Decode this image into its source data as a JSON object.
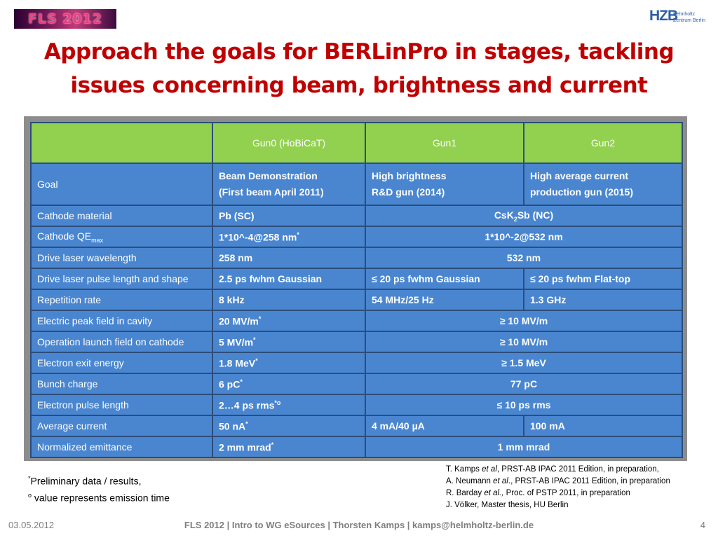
{
  "header": {
    "logo_left_text": "FLS 2012",
    "logo_right_text": "HZB",
    "logo_right_sub1": "Helmholtz",
    "logo_right_sub2": "Zentrum Berlin"
  },
  "title_line1": "Approach the goals for BERLinPro in stages, tackling",
  "title_line2": "issues concerning beam, brightness and current",
  "table": {
    "columns": [
      "",
      "Gun0 (HoBiCaT)",
      "Gun1",
      "Gun2"
    ],
    "goal": {
      "label": "Goal",
      "gun0_line1": "Beam Demonstration",
      "gun0_line2": "(First beam April 2011)",
      "gun1_line1": "High brightness",
      "gun1_line2": "R&D gun (2014)",
      "gun2_line1": "High average current",
      "gun2_line2": "production gun (2015)"
    },
    "cathode_material": {
      "label": "Cathode material",
      "gun0": "Pb (SC)",
      "gun12_pre": "CsK",
      "gun12_sub": "2",
      "gun12_post": "Sb (NC)"
    },
    "cathode_qe": {
      "label_main": "Cathode QE",
      "label_sub": "max",
      "gun0": "1*10^-4@258 nm",
      "gun0_sup": "*",
      "gun12": "1*10^-2@532 nm"
    },
    "rows": [
      {
        "label": "Drive laser wavelength",
        "gun0": "258 nm",
        "gun12": "532 nm"
      },
      {
        "label": "Drive laser pulse length and shape",
        "gun0": "2.5 ps fwhm Gaussian",
        "gun1": "≤ 20 ps fwhm Gaussian",
        "gun2": " ≤ 20 ps fwhm Flat-top"
      },
      {
        "label": "Repetition rate",
        "gun0": "8 kHz",
        "gun1": "54 MHz/25 Hz",
        "gun2": "1.3 GHz"
      },
      {
        "label": "Electric peak field in cavity",
        "gun0": "20 MV/m",
        "gun0_sup": "*",
        "gun12": "≥ 10 MV/m"
      },
      {
        "label": "Operation launch field on cathode",
        "gun0": "5 MV/m",
        "gun0_sup": "*",
        "gun12": "≥ 10 MV/m"
      },
      {
        "label": "Electron exit energy",
        "gun0": "1.8 MeV",
        "gun0_sup": "*",
        "gun12": "≥ 1.5 MeV"
      },
      {
        "label": "Bunch charge",
        "gun0": "6 pC",
        "gun0_sup": "*",
        "gun12": "77 pC"
      },
      {
        "label": "Electron pulse length",
        "gun0": "2…4 ps rms",
        "gun0_sup": "*o",
        "gun12": "≤ 10 ps rms"
      },
      {
        "label": "Average current",
        "gun0": "50 nA",
        "gun0_sup": "*",
        "gun1": "4 mA/40 µA",
        "gun2": "100 mA"
      },
      {
        "label": "Normalized emittance",
        "gun0": "2 mm  mrad",
        "gun0_sup": "*",
        "gun12": "1 mm mrad"
      }
    ]
  },
  "notes_left": {
    "line1_sup": "*",
    "line1": "Preliminary data / results,",
    "line2_sup": "o",
    "line2": " value represents emission time"
  },
  "notes_right": {
    "r1_pre": "T. Kamps ",
    "r1_em": "et al",
    "r1_post": ", PRST-AB IPAC 2011 Edition, in preparation,",
    "r2_pre": "A. Neumann ",
    "r2_em": "et al",
    "r2_post": "., PRST-AB IPAC 2011 Edition, in preparation",
    "r3_pre": "R. Barday ",
    "r3_em": "et al.,",
    "r3_post": " Proc. of PSTP 2011, in preparation",
    "r4": "J. Völker, Master thesis, HU Berlin"
  },
  "footer": {
    "date": "03.05.2012",
    "center": "FLS 2012 | Intro to WG eSources | Thorsten Kamps |  kamps@helmholtz-berlin.de",
    "page": "4"
  }
}
